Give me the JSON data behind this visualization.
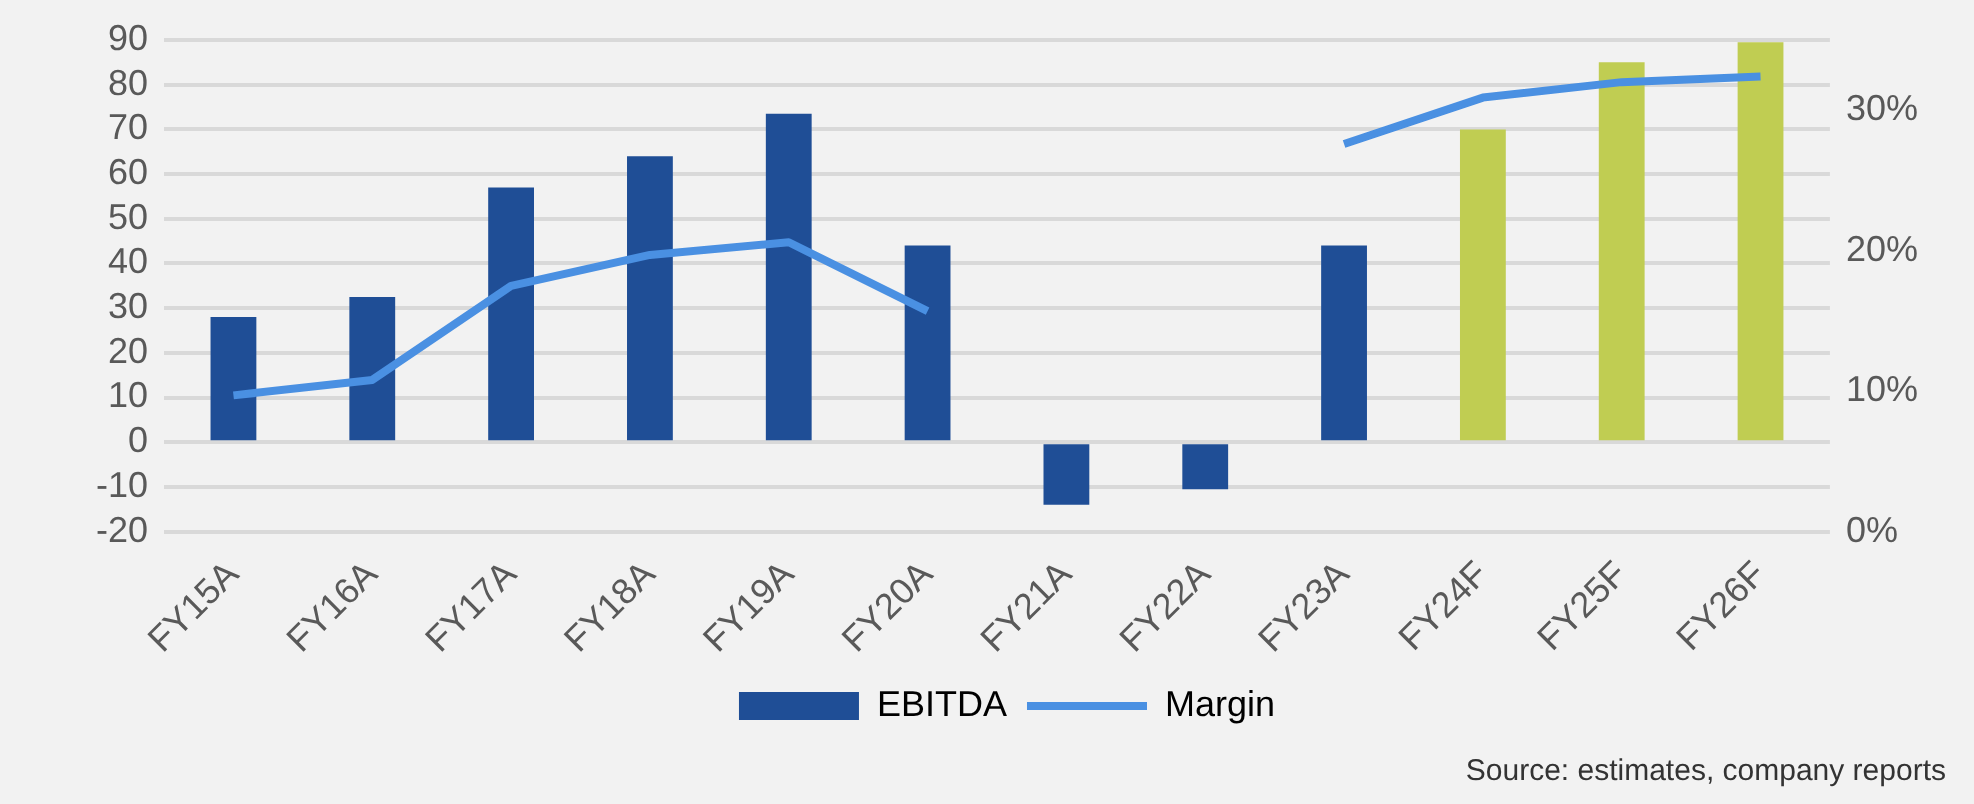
{
  "chart_data": {
    "type": "bar",
    "categories": [
      "FY15A",
      "FY16A",
      "FY17A",
      "FY18A",
      "FY19A",
      "FY20A",
      "FY21A",
      "FY22A",
      "FY23A",
      "FY24F",
      "FY25F",
      "FY26F"
    ],
    "series": [
      {
        "name": "EBITDA",
        "colors": [
          "#1f4e96",
          "#1f4e96",
          "#1f4e96",
          "#1f4e96",
          "#1f4e96",
          "#1f4e96",
          "#1f4e96",
          "#1f4e96",
          "#1f4e96",
          "#c0cd52",
          "#c0cd52",
          "#c0cd52"
        ],
        "values": [
          28,
          32.5,
          57,
          64,
          73.5,
          44,
          -14,
          -10.5,
          44,
          70,
          85,
          89.5
        ]
      },
      {
        "name": "Margin",
        "type": "line",
        "axis": "y2",
        "color": "#4a90e2",
        "values": [
          9.7,
          10.8,
          17.5,
          19.7,
          20.6,
          15.7,
          null,
          null,
          27.6,
          30.9,
          32.0,
          32.4
        ]
      }
    ],
    "ylim": [
      -20,
      90
    ],
    "yticks": [
      -20,
      -10,
      0,
      10,
      20,
      30,
      40,
      50,
      60,
      70,
      80,
      90
    ],
    "y2lim": [
      0,
      35
    ],
    "y2ticks": [
      {
        "value": 0,
        "label": "0%"
      },
      {
        "value": 10,
        "label": "10%"
      },
      {
        "value": 20,
        "label": "20%"
      },
      {
        "value": 30,
        "label": "30%"
      }
    ],
    "grid": "y",
    "legend": "bottom",
    "marker": "none",
    "line_style": "solid",
    "annotations": [
      "Source: estimates, company reports"
    ]
  }
}
